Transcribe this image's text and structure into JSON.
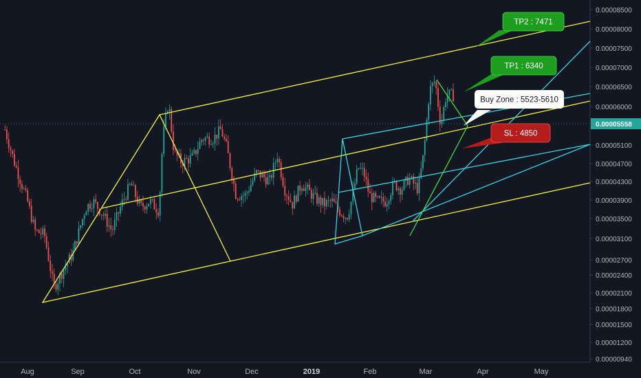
{
  "chart_data": {
    "type": "candlestick",
    "y_axis": {
      "scale": "log",
      "ticks": [
        "0.00008500",
        "0.00008000",
        "0.00007500",
        "0.00007000",
        "0.00006500",
        "0.00006000",
        "0.00005500",
        "0.00005100",
        "0.00004700",
        "0.00004300",
        "0.00003900",
        "0.00003500",
        "0.00003100",
        "0.00002700",
        "0.00002400",
        "0.00002100",
        "0.00001800",
        "0.00001500",
        "0.00001200",
        "0.00000940"
      ],
      "current_price": "0.00005558"
    },
    "x_axis": {
      "ticks": [
        "Aug",
        "Sep",
        "Oct",
        "Nov",
        "Dec",
        "2019",
        "Feb",
        "Mar",
        "Apr",
        "May"
      ]
    },
    "annotations": {
      "tp2": "TP2 : 7471",
      "tp1": "TP1 : 6340",
      "buy_zone": "Buy Zone : 5523-5610",
      "sl": "SL : 4850"
    },
    "colors": {
      "background": "#131722",
      "up_candle": "#26a69a",
      "down_candle": "#ef5350",
      "pitchfork_yellow": "#f5f53d",
      "pitchfork_cyan": "#33d6e6",
      "pitchfork_green": "#44dd44",
      "tp_box": "#1e9e1e",
      "sl_box": "#b71c1c",
      "price_tag": "#26a69a"
    },
    "grid": false,
    "series_price_path": [
      [
        "2018-07-20",
        4700
      ],
      [
        "2018-07-25",
        4000
      ],
      [
        "2018-08-01",
        3300
      ],
      [
        "2018-08-05",
        2850
      ],
      [
        "2018-08-10",
        2800
      ],
      [
        "2018-08-15",
        2150
      ],
      [
        "2018-08-20",
        2350
      ],
      [
        "2018-08-25",
        2550
      ],
      [
        "2018-09-01",
        3200
      ],
      [
        "2018-09-05",
        3300
      ],
      [
        "2018-09-10",
        3100
      ],
      [
        "2018-09-15",
        2850
      ],
      [
        "2018-09-20",
        3250
      ],
      [
        "2018-09-25",
        3600
      ],
      [
        "2018-09-30",
        3200
      ],
      [
        "2018-10-05",
        3300
      ],
      [
        "2018-10-10",
        3150
      ],
      [
        "2018-10-12",
        4500
      ],
      [
        "2018-10-15",
        5400
      ],
      [
        "2018-10-18",
        4200
      ],
      [
        "2018-10-22",
        4000
      ],
      [
        "2018-10-28",
        4100
      ],
      [
        "2018-11-02",
        4500
      ],
      [
        "2018-11-08",
        4500
      ],
      [
        "2018-11-12",
        4700
      ],
      [
        "2018-11-15",
        4300
      ],
      [
        "2018-11-20",
        3400
      ],
      [
        "2018-11-25",
        3400
      ],
      [
        "2018-12-01",
        3800
      ],
      [
        "2018-12-08",
        3650
      ],
      [
        "2018-12-12",
        4150
      ],
      [
        "2018-12-16",
        3500
      ],
      [
        "2018-12-20",
        3250
      ],
      [
        "2018-12-25",
        3600
      ],
      [
        "2019-01-01",
        3350
      ],
      [
        "2019-01-06",
        3250
      ],
      [
        "2019-01-10",
        3300
      ],
      [
        "2019-01-14",
        3150
      ],
      [
        "2019-01-18",
        3050
      ],
      [
        "2019-01-20",
        3250
      ],
      [
        "2019-01-24",
        3900
      ],
      [
        "2019-01-27",
        3800
      ],
      [
        "2019-01-30",
        3400
      ],
      [
        "2019-02-03",
        3300
      ],
      [
        "2019-02-08",
        3300
      ],
      [
        "2019-02-12",
        3600
      ],
      [
        "2019-02-16",
        3500
      ],
      [
        "2019-02-20",
        3700
      ],
      [
        "2019-02-25",
        3500
      ],
      [
        "2019-02-28",
        4200
      ],
      [
        "2019-03-03",
        5700
      ],
      [
        "2019-03-06",
        6000
      ],
      [
        "2019-03-09",
        4800
      ],
      [
        "2019-03-12",
        5600
      ],
      [
        "2019-03-16",
        5558
      ]
    ]
  }
}
